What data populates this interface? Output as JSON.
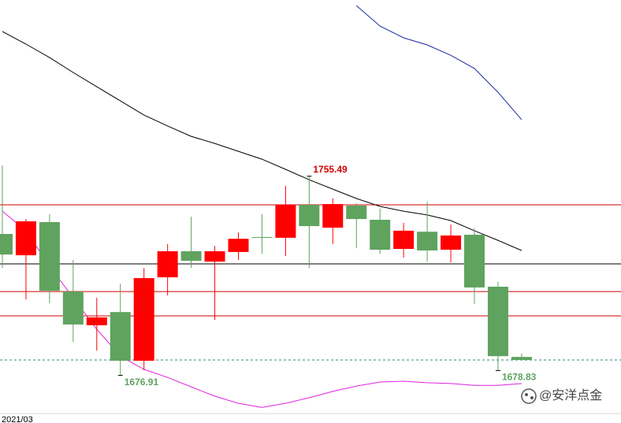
{
  "chart_data": {
    "type": "candlestick",
    "categories": [
      "2021/03",
      null,
      null,
      null,
      null,
      null,
      null,
      null,
      null,
      null,
      null,
      null,
      null,
      null,
      null,
      null,
      null,
      null,
      null,
      null,
      null,
      null,
      null
    ],
    "open": [
      1732.7,
      1724.3,
      1737.4,
      1710.0,
      1696.7,
      1701.9,
      1682.7,
      1715.6,
      1725.9,
      1721.8,
      1725.6,
      1731.5,
      1731.2,
      1744.2,
      1735.2,
      1743.9,
      1738.3,
      1726.8,
      1733.6,
      1726.5,
      1732.4,
      1711.9,
      1684.2
    ],
    "high": [
      1759.7,
      1738.6,
      1740.5,
      1722.5,
      1707.5,
      1713.1,
      1719.3,
      1728.7,
      1739.5,
      1728.0,
      1733.3,
      1740.5,
      1751.7,
      1755.49,
      1746.7,
      1744.8,
      1742.7,
      1737.1,
      1745.4,
      1736.4,
      1734.9,
      1713.8,
      1685.5
    ],
    "low": [
      1719.3,
      1706.9,
      1705.4,
      1690.1,
      1686.7,
      1676.91,
      1679.0,
      1708.5,
      1719.3,
      1698.8,
      1722.5,
      1724.9,
      1724.0,
      1719.3,
      1728.7,
      1727.1,
      1724.9,
      1723.4,
      1721.8,
      1721.5,
      1705.1,
      1678.83,
      1683.0
    ],
    "close": [
      1724.6,
      1737.7,
      1710.3,
      1697.0,
      1699.8,
      1682.7,
      1715.3,
      1725.9,
      1722.1,
      1725.9,
      1730.8,
      1731.2,
      1744.2,
      1735.8,
      1744.5,
      1738.6,
      1726.5,
      1734.0,
      1726.2,
      1732.1,
      1711.6,
      1684.5,
      1683.0
    ],
    "high_labels": [
      null,
      null,
      null,
      null,
      null,
      null,
      null,
      null,
      null,
      null,
      null,
      null,
      null,
      "1755.49",
      null,
      null,
      null,
      null,
      null,
      null,
      null,
      null,
      null
    ],
    "low_labels": [
      null,
      null,
      null,
      null,
      null,
      "1676.91",
      null,
      null,
      null,
      null,
      null,
      null,
      null,
      null,
      null,
      null,
      null,
      null,
      null,
      null,
      null,
      "1678.83",
      null
    ],
    "up_color": "#ff0000",
    "down_color": "#5fa35f",
    "lines": [
      {
        "color": "#000000",
        "values": [
          1812.6,
          1807.6,
          1802.3,
          1796.4,
          1790.8,
          1785.2,
          1779.6,
          1775.3,
          1771.2,
          1768.4,
          1765.3,
          1762.2,
          1758.2,
          1754.1,
          1750.4,
          1746.7,
          1743.6,
          1741.7,
          1740.2,
          1738.0,
          1734.0,
          1730.2,
          1726.2
        ]
      },
      {
        "color": "#1a2a9e",
        "values": [
          null,
          null,
          null,
          null,
          null,
          null,
          null,
          null,
          null,
          null,
          null,
          null,
          null,
          null,
          null,
          1822.8,
          1814.7,
          1810.1,
          1807.3,
          1803.2,
          1798.0,
          1788.6,
          1777.8
        ]
      },
      {
        "color": "#e020e0",
        "values": [
          1741.7,
          1734.0,
          1720.0,
          1707.5,
          1695.1,
          1684.5,
          1679.3,
          1676.1,
          1672.4,
          1668.7,
          1665.9,
          1664.3,
          1665.9,
          1668.1,
          1670.6,
          1672.7,
          1674.3,
          1674.6,
          1674.0,
          1673.7,
          1673.0,
          1673.0,
          1673.7
        ]
      }
    ],
    "hlines": [
      {
        "value": 1744.2,
        "color": "#d40000",
        "dashed": false
      },
      {
        "value": 1720.9,
        "color": "#000000",
        "dashed": false
      },
      {
        "value": 1710.0,
        "color": "#d40000",
        "dashed": false
      },
      {
        "value": 1700.4,
        "color": "#d40000",
        "dashed": false
      },
      {
        "value": 1683.0,
        "color": "#2a8a8a",
        "dashed": true
      }
    ],
    "ylim": [
      1660,
      1825
    ],
    "watermark": "@安洋点金"
  }
}
